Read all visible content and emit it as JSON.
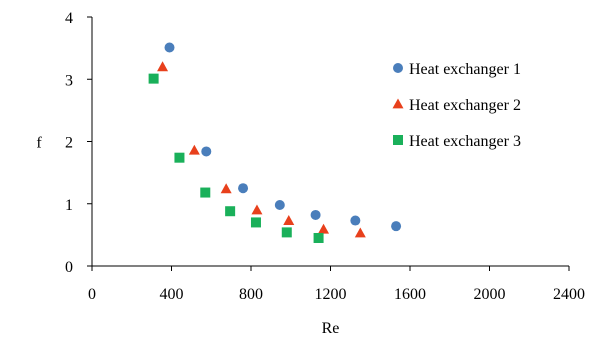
{
  "chart_data": {
    "type": "scatter",
    "xlabel": "Re",
    "ylabel": "f",
    "xlim": [
      0,
      2400
    ],
    "ylim": [
      0,
      4
    ],
    "xticks": [
      0,
      400,
      800,
      1200,
      1600,
      2000,
      2400
    ],
    "yticks": [
      0,
      1,
      2,
      3,
      4
    ],
    "grid": false,
    "legend_position": "right",
    "series": [
      {
        "name": "Heat exchanger 1",
        "marker": "circle",
        "color": "#4a7ebb",
        "points": [
          [
            390,
            3.51
          ],
          [
            575,
            1.84
          ],
          [
            760,
            1.25
          ],
          [
            945,
            0.98
          ],
          [
            1125,
            0.82
          ],
          [
            1325,
            0.73
          ],
          [
            1530,
            0.64
          ]
        ]
      },
      {
        "name": "Heat exchanger 2",
        "marker": "triangle",
        "color": "#e8401c",
        "points": [
          [
            355,
            3.2
          ],
          [
            515,
            1.86
          ],
          [
            675,
            1.24
          ],
          [
            830,
            0.9
          ],
          [
            990,
            0.73
          ],
          [
            1165,
            0.59
          ],
          [
            1350,
            0.53
          ]
        ]
      },
      {
        "name": "Heat exchanger 3",
        "marker": "square",
        "color": "#1ab05a",
        "points": [
          [
            310,
            3.01
          ],
          [
            440,
            1.74
          ],
          [
            570,
            1.18
          ],
          [
            695,
            0.88
          ],
          [
            825,
            0.7
          ],
          [
            980,
            0.54
          ],
          [
            1140,
            0.45
          ]
        ]
      }
    ]
  }
}
